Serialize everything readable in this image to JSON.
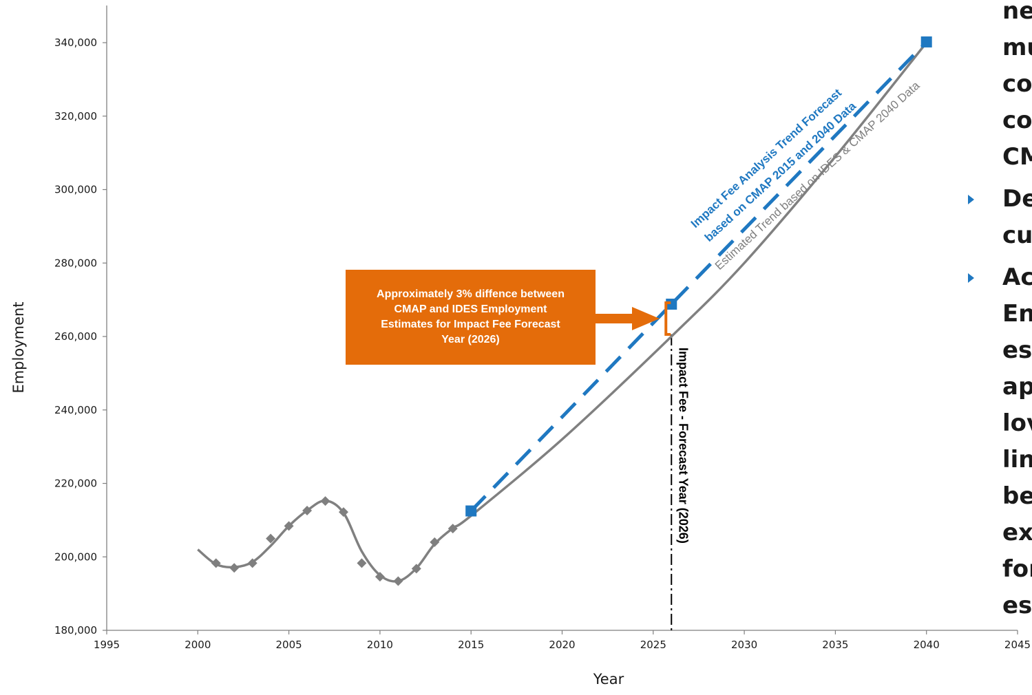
{
  "chart_data": {
    "type": "scatter",
    "xlabel": "Year",
    "ylabel": "Employment",
    "xlim": [
      1995,
      2045
    ],
    "ylim": [
      180000,
      350000
    ],
    "x_ticks": [
      1995,
      2000,
      2005,
      2010,
      2015,
      2020,
      2025,
      2030,
      2035,
      2040,
      2045
    ],
    "y_ticks": [
      180000,
      200000,
      220000,
      240000,
      260000,
      280000,
      300000,
      320000,
      340000
    ],
    "x_tick_labels": [
      "1995",
      "2000",
      "2005",
      "2010",
      "2015",
      "2020",
      "2025",
      "2030",
      "2035",
      "2040",
      "2045"
    ],
    "y_tick_labels": [
      "180,000",
      "200,000",
      "220,000",
      "240,000",
      "260,000",
      "280,000",
      "300,000",
      "320,000",
      "340,000"
    ],
    "grid": false,
    "series": [
      {
        "marker": "diamond",
        "color": "#7f7f7f",
        "x": [
          2001,
          2002,
          2003,
          2004,
          2005,
          2006,
          2007,
          2008,
          2009,
          2010,
          2011,
          2012,
          2013,
          2014
        ],
        "y": [
          198300,
          197000,
          198300,
          205000,
          208400,
          212600,
          215200,
          212200,
          198300,
          194600,
          193400,
          196800,
          204000,
          207700
        ]
      },
      {
        "line": "solid",
        "color": "#808080",
        "x": [
          2000,
          2001,
          2002,
          2003,
          2004,
          2005,
          2006,
          2007,
          2008,
          2009,
          2010,
          2011,
          2012,
          2013,
          2014,
          2015,
          2020,
          2026,
          2030,
          2035,
          2040
        ],
        "y": [
          202000,
          198000,
          197200,
          198600,
          203000,
          208400,
          212600,
          215300,
          212000,
          201500,
          195000,
          193400,
          196900,
          203500,
          207800,
          211200,
          232000,
          260000,
          280000,
          309000,
          340000
        ]
      },
      {
        "line": "dashed",
        "color": "#1f78c1",
        "marker": "square",
        "x": [
          2015,
          2026,
          2040
        ],
        "y": [
          212500,
          268800,
          340200
        ]
      }
    ],
    "annotations": {
      "blue_trend_line1": "Impact Fee Analysis Trend Forecast",
      "blue_trend_line2": "based on CMAP 2015 and 2040 Data",
      "gray_trend": "Estimated Trend based on IDES & CMAP 2040 Data",
      "forecast_year": "Impact Fee - Forecast Year (2026)",
      "forecast_year_x": 2026,
      "callout_lines": [
        "Approximately 3% diffence between",
        "CMAP and IDES Employment",
        "Estimates for Impact Fee Forecast",
        "Year (2026)"
      ]
    }
  },
  "bullets": {
    "color": "#1f78c1",
    "fragments": [
      {
        "text": "ne",
        "bullet": false
      },
      {
        "text": "mu",
        "bullet": false
      },
      {
        "text": "co",
        "bullet": false
      },
      {
        "text": "co",
        "bullet": false
      },
      {
        "text": "CM",
        "bullet": false
      },
      {
        "text": "De",
        "bullet": true
      },
      {
        "text": "cu",
        "bullet": false
      },
      {
        "text": "Ac",
        "bullet": true
      },
      {
        "text": "En",
        "bullet": false
      },
      {
        "text": "es",
        "bullet": false
      },
      {
        "text": "ap",
        "bullet": false
      },
      {
        "text": "lov",
        "bullet": false
      },
      {
        "text": "lin",
        "bullet": false
      },
      {
        "text": "be",
        "bullet": false
      },
      {
        "text": "ex",
        "bullet": false
      },
      {
        "text": "for",
        "bullet": false
      },
      {
        "text": "es",
        "bullet": false
      }
    ]
  }
}
